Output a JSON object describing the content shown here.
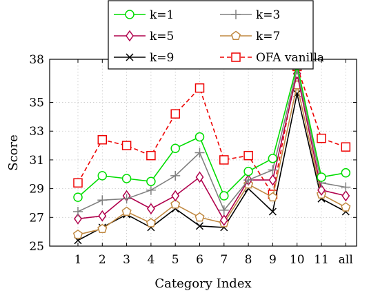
{
  "chart_data": {
    "type": "line",
    "xlabel": "Category Index",
    "ylabel": "Score",
    "categories": [
      "1",
      "2",
      "3",
      "4",
      "5",
      "6",
      "7",
      "8",
      "9",
      "10",
      "11",
      "all"
    ],
    "ylim": [
      25,
      38
    ],
    "yticks": [
      25,
      27,
      29,
      31,
      33,
      35,
      38
    ],
    "grid": "dotted",
    "legend_position": "top-center",
    "series": [
      {
        "name": "k=1",
        "color": "#00dd00",
        "marker": "circle",
        "dash": "solid",
        "values": [
          28.4,
          29.9,
          29.7,
          29.5,
          31.8,
          32.6,
          28.5,
          30.2,
          31.1,
          37.6,
          29.8,
          30.1
        ]
      },
      {
        "name": "k=3",
        "color": "#808080",
        "marker": "plus",
        "dash": "solid",
        "values": [
          27.4,
          28.2,
          28.3,
          28.9,
          29.9,
          31.5,
          27.5,
          29.6,
          30.3,
          37.3,
          29.4,
          29.1
        ]
      },
      {
        "name": "k=5",
        "color": "#b0004c",
        "marker": "diamond",
        "dash": "solid",
        "values": [
          26.9,
          27.1,
          28.5,
          27.6,
          28.5,
          29.8,
          26.8,
          29.6,
          29.6,
          37.0,
          28.9,
          28.5
        ]
      },
      {
        "name": "k=7",
        "color": "#c08840",
        "marker": "pentagon",
        "dash": "solid",
        "values": [
          25.8,
          26.2,
          27.4,
          26.6,
          27.9,
          27.0,
          26.6,
          29.3,
          28.4,
          36.2,
          28.6,
          27.7
        ]
      },
      {
        "name": "k=9",
        "color": "#000000",
        "marker": "x",
        "dash": "solid",
        "values": [
          25.4,
          26.3,
          27.2,
          26.3,
          27.6,
          26.4,
          26.3,
          29.0,
          27.4,
          35.6,
          28.3,
          27.4
        ]
      },
      {
        "name": "OFA vanilla",
        "color": "#ee0000",
        "marker": "square",
        "dash": "dashed",
        "values": [
          29.4,
          32.4,
          32.0,
          31.3,
          34.2,
          36.0,
          31.0,
          31.3,
          28.6,
          37.5,
          32.5,
          31.9
        ]
      }
    ]
  }
}
